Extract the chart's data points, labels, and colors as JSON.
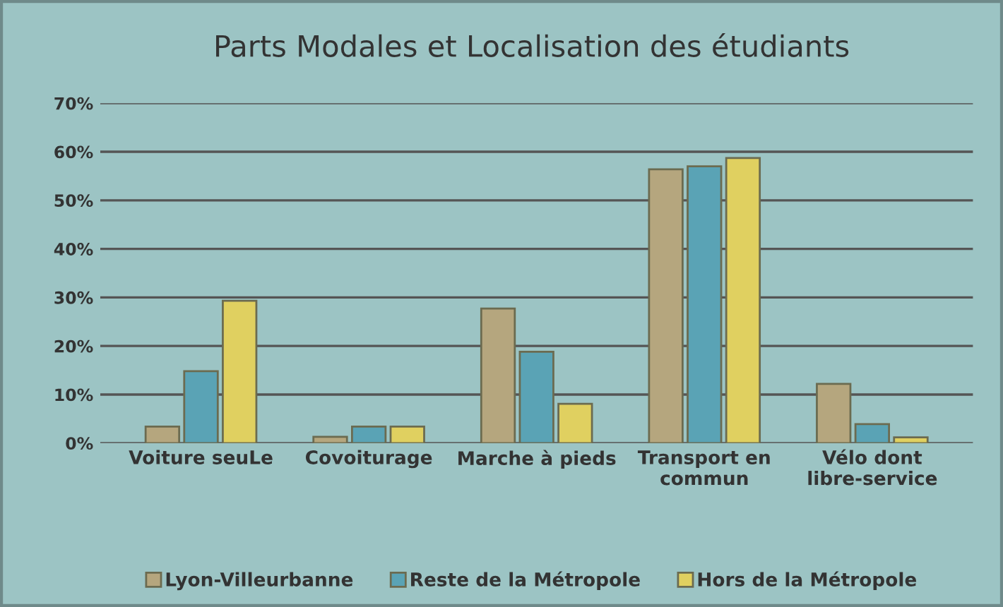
{
  "chart_data": {
    "type": "bar",
    "title": "Parts Modales et Localisation des étudiants",
    "categories": [
      "Voiture seuLe",
      "Covoiturage",
      "Marche à pieds",
      "Transport en\ncommun",
      "Vélo dont\nlibre-service"
    ],
    "series": [
      {
        "name": "Lyon-Villeurbanne",
        "color": "#b5a67e",
        "values": [
          3.4,
          1.3,
          27.7,
          56.4,
          12.2
        ]
      },
      {
        "name": "Reste de la Métropole",
        "color": "#5aa3b5",
        "values": [
          14.8,
          3.4,
          18.8,
          57.0,
          3.9
        ]
      },
      {
        "name": "Hors de la Métropole",
        "color": "#e0d060",
        "values": [
          29.3,
          3.4,
          8.1,
          58.7,
          1.2
        ]
      }
    ],
    "ylim": [
      0,
      70
    ],
    "yticks": [
      {
        "value": 0,
        "label": "0%"
      },
      {
        "value": 10,
        "label": "10%"
      },
      {
        "value": 20,
        "label": "20%"
      },
      {
        "value": 30,
        "label": "30%"
      },
      {
        "value": 40,
        "label": "40%"
      },
      {
        "value": 50,
        "label": "50%"
      },
      {
        "value": 60,
        "label": "60%"
      },
      {
        "value": 70,
        "label": "70%"
      }
    ],
    "grid": "y",
    "legend": "bottom"
  }
}
